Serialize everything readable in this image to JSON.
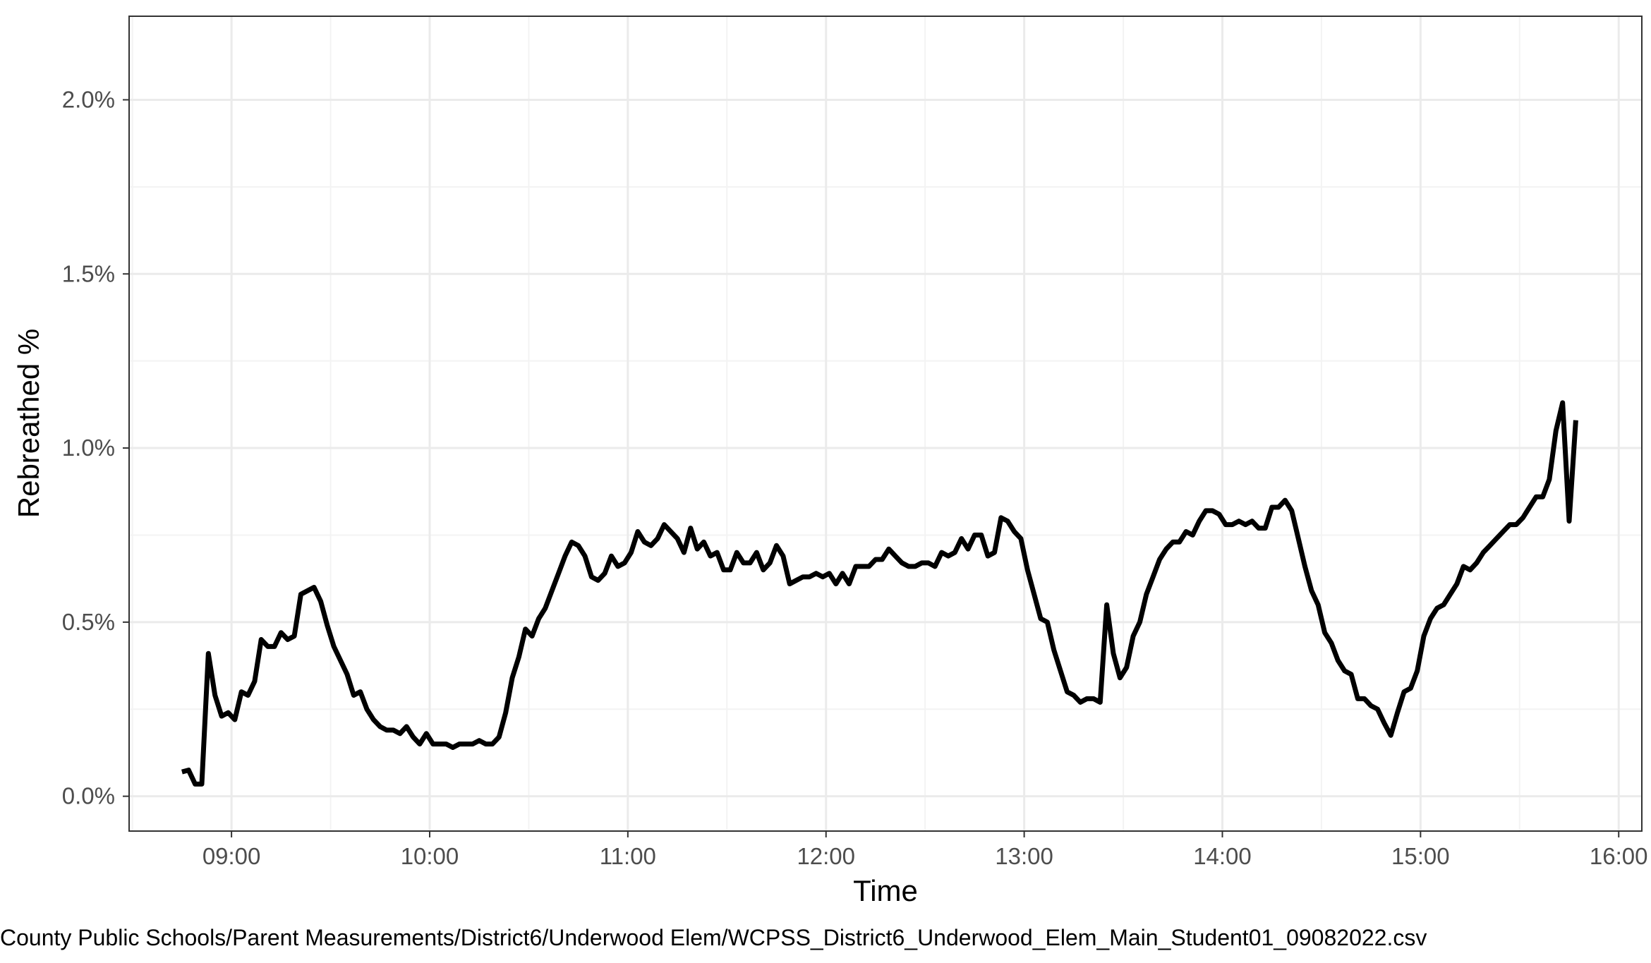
{
  "chart_data": {
    "type": "line",
    "title": "",
    "xlabel": "Time",
    "ylabel": "Rebreathed %",
    "caption": "County Public Schools/Parent Measurements/District6/Underwood Elem/WCPSS_District6_Underwood_Elem_Main_Student01_09082022.csv",
    "xlim": [
      "08:29",
      "16:07"
    ],
    "ylim": [
      -0.001,
      0.0224
    ],
    "grid": true,
    "legend": "none",
    "line_color": "#000000",
    "x_ticks": [
      {
        "t": "09:00",
        "label": "09:00"
      },
      {
        "t": "10:00",
        "label": "10:00"
      },
      {
        "t": "11:00",
        "label": "11:00"
      },
      {
        "t": "12:00",
        "label": "12:00"
      },
      {
        "t": "13:00",
        "label": "13:00"
      },
      {
        "t": "14:00",
        "label": "14:00"
      },
      {
        "t": "15:00",
        "label": "15:00"
      },
      {
        "t": "16:00",
        "label": "16:00"
      }
    ],
    "y_ticks": [
      {
        "v": 0.0,
        "label": "0.0%"
      },
      {
        "v": 0.005,
        "label": "0.5%"
      },
      {
        "v": 0.01,
        "label": "1.0%"
      },
      {
        "v": 0.015,
        "label": "1.5%"
      },
      {
        "v": 0.02,
        "label": "2.0%"
      }
    ],
    "series": [
      {
        "x": [
          "08:45",
          "08:47",
          "08:49",
          "08:51",
          "08:53",
          "08:55",
          "08:57",
          "08:59",
          "09:01",
          "09:03",
          "09:05",
          "09:07",
          "09:09",
          "09:11",
          "09:13",
          "09:15",
          "09:17",
          "09:19",
          "09:21",
          "09:23",
          "09:25",
          "09:27",
          "09:29",
          "09:31",
          "09:33",
          "09:35",
          "09:37",
          "09:39",
          "09:41",
          "09:43",
          "09:45",
          "09:47",
          "09:49",
          "09:51",
          "09:53",
          "09:55",
          "09:57",
          "09:59",
          "10:01",
          "10:03",
          "10:05",
          "10:07",
          "10:09",
          "10:11",
          "10:13",
          "10:15",
          "10:17",
          "10:19",
          "10:21",
          "10:23",
          "10:25",
          "10:27",
          "10:29",
          "10:31",
          "10:33",
          "10:35",
          "10:37",
          "10:39",
          "10:41",
          "10:43",
          "10:45",
          "10:47",
          "10:49",
          "10:51",
          "10:53",
          "10:55",
          "10:57",
          "10:59",
          "11:01",
          "11:03",
          "11:05",
          "11:07",
          "11:09",
          "11:11",
          "11:13",
          "11:15",
          "11:17",
          "11:19",
          "11:21",
          "11:23",
          "11:25",
          "11:27",
          "11:29",
          "11:31",
          "11:33",
          "11:35",
          "11:37",
          "11:39",
          "11:41",
          "11:43",
          "11:45",
          "11:47",
          "11:49",
          "11:51",
          "11:53",
          "11:55",
          "11:57",
          "11:59",
          "12:01",
          "12:03",
          "12:05",
          "12:07",
          "12:09",
          "12:11",
          "12:13",
          "12:15",
          "12:17",
          "12:19",
          "12:21",
          "12:23",
          "12:25",
          "12:27",
          "12:29",
          "12:31",
          "12:33",
          "12:35",
          "12:37",
          "12:39",
          "12:41",
          "12:43",
          "12:45",
          "12:47",
          "12:49",
          "12:51",
          "12:53",
          "12:55",
          "12:57",
          "12:59",
          "13:01",
          "13:03",
          "13:05",
          "13:07",
          "13:09",
          "13:11",
          "13:13",
          "13:15",
          "13:17",
          "13:19",
          "13:21",
          "13:23",
          "13:25",
          "13:27",
          "13:29",
          "13:31",
          "13:33",
          "13:35",
          "13:37",
          "13:39",
          "13:41",
          "13:43",
          "13:45",
          "13:47",
          "13:49",
          "13:51",
          "13:53",
          "13:55",
          "13:57",
          "13:59",
          "14:01",
          "14:03",
          "14:05",
          "14:07",
          "14:09",
          "14:11",
          "14:13",
          "14:15",
          "14:17",
          "14:19",
          "14:21",
          "14:23",
          "14:25",
          "14:27",
          "14:29",
          "14:31",
          "14:33",
          "14:35",
          "14:37",
          "14:39",
          "14:41",
          "14:43",
          "14:45",
          "14:47",
          "14:49",
          "14:51",
          "14:53",
          "14:55",
          "14:57",
          "14:59",
          "15:01",
          "15:03",
          "15:05",
          "15:07",
          "15:09",
          "15:11",
          "15:13",
          "15:15",
          "15:17",
          "15:19",
          "15:21",
          "15:23",
          "15:25",
          "15:27",
          "15:29",
          "15:31",
          "15:33",
          "15:35",
          "15:37",
          "15:39",
          "15:41",
          "15:43",
          "15:45",
          "15:47"
        ],
        "y": [
          0.0007,
          0.00075,
          0.00035,
          0.00035,
          0.0041,
          0.0029,
          0.0023,
          0.0024,
          0.0022,
          0.003,
          0.0029,
          0.0033,
          0.0045,
          0.0043,
          0.0043,
          0.0047,
          0.0045,
          0.0046,
          0.0058,
          0.0059,
          0.006,
          0.0056,
          0.0049,
          0.0043,
          0.0039,
          0.0035,
          0.0029,
          0.003,
          0.0025,
          0.0022,
          0.002,
          0.0019,
          0.0019,
          0.0018,
          0.002,
          0.0017,
          0.0015,
          0.0018,
          0.0015,
          0.0015,
          0.0015,
          0.0014,
          0.0015,
          0.0015,
          0.0015,
          0.0016,
          0.0015,
          0.0015,
          0.0017,
          0.0024,
          0.0034,
          0.004,
          0.0048,
          0.0046,
          0.0051,
          0.0054,
          0.0059,
          0.0064,
          0.0069,
          0.0073,
          0.0072,
          0.0069,
          0.0063,
          0.0062,
          0.0064,
          0.0069,
          0.0066,
          0.0067,
          0.007,
          0.0076,
          0.0073,
          0.0072,
          0.0074,
          0.0078,
          0.0076,
          0.0074,
          0.007,
          0.0077,
          0.0071,
          0.0073,
          0.0069,
          0.007,
          0.0065,
          0.0065,
          0.007,
          0.0067,
          0.0067,
          0.007,
          0.0065,
          0.0067,
          0.0072,
          0.0069,
          0.0061,
          0.0062,
          0.0063,
          0.0063,
          0.0064,
          0.0063,
          0.0064,
          0.0061,
          0.0064,
          0.0061,
          0.0066,
          0.0066,
          0.0066,
          0.0068,
          0.0068,
          0.0071,
          0.0069,
          0.0067,
          0.0066,
          0.0066,
          0.0067,
          0.0067,
          0.0066,
          0.007,
          0.0069,
          0.007,
          0.0074,
          0.0071,
          0.0075,
          0.0075,
          0.0069,
          0.007,
          0.008,
          0.0079,
          0.0076,
          0.0074,
          0.0065,
          0.0058,
          0.0051,
          0.005,
          0.0042,
          0.0036,
          0.003,
          0.0029,
          0.0027,
          0.0028,
          0.0028,
          0.0027,
          0.0055,
          0.0041,
          0.0034,
          0.0037,
          0.0046,
          0.005,
          0.0058,
          0.0063,
          0.0068,
          0.0071,
          0.0073,
          0.0073,
          0.0076,
          0.0075,
          0.0079,
          0.0082,
          0.0082,
          0.0081,
          0.0078,
          0.0078,
          0.0079,
          0.0078,
          0.0079,
          0.0077,
          0.0077,
          0.0083,
          0.0083,
          0.0085,
          0.0082,
          0.0074,
          0.0066,
          0.0059,
          0.0055,
          0.0047,
          0.0044,
          0.0039,
          0.0036,
          0.0035,
          0.0028,
          0.0028,
          0.0026,
          0.0025,
          0.0021,
          0.00175,
          0.0024,
          0.003,
          0.0031,
          0.0036,
          0.0046,
          0.0051,
          0.0054,
          0.0055,
          0.0058,
          0.0061,
          0.0066,
          0.0065,
          0.0067,
          0.007,
          0.0072,
          0.0074,
          0.0076,
          0.0078,
          0.0078,
          0.008,
          0.0083,
          0.0086,
          0.0086,
          0.0091,
          0.0105,
          0.0113,
          0.0079,
          0.0108
        ]
      }
    ]
  }
}
